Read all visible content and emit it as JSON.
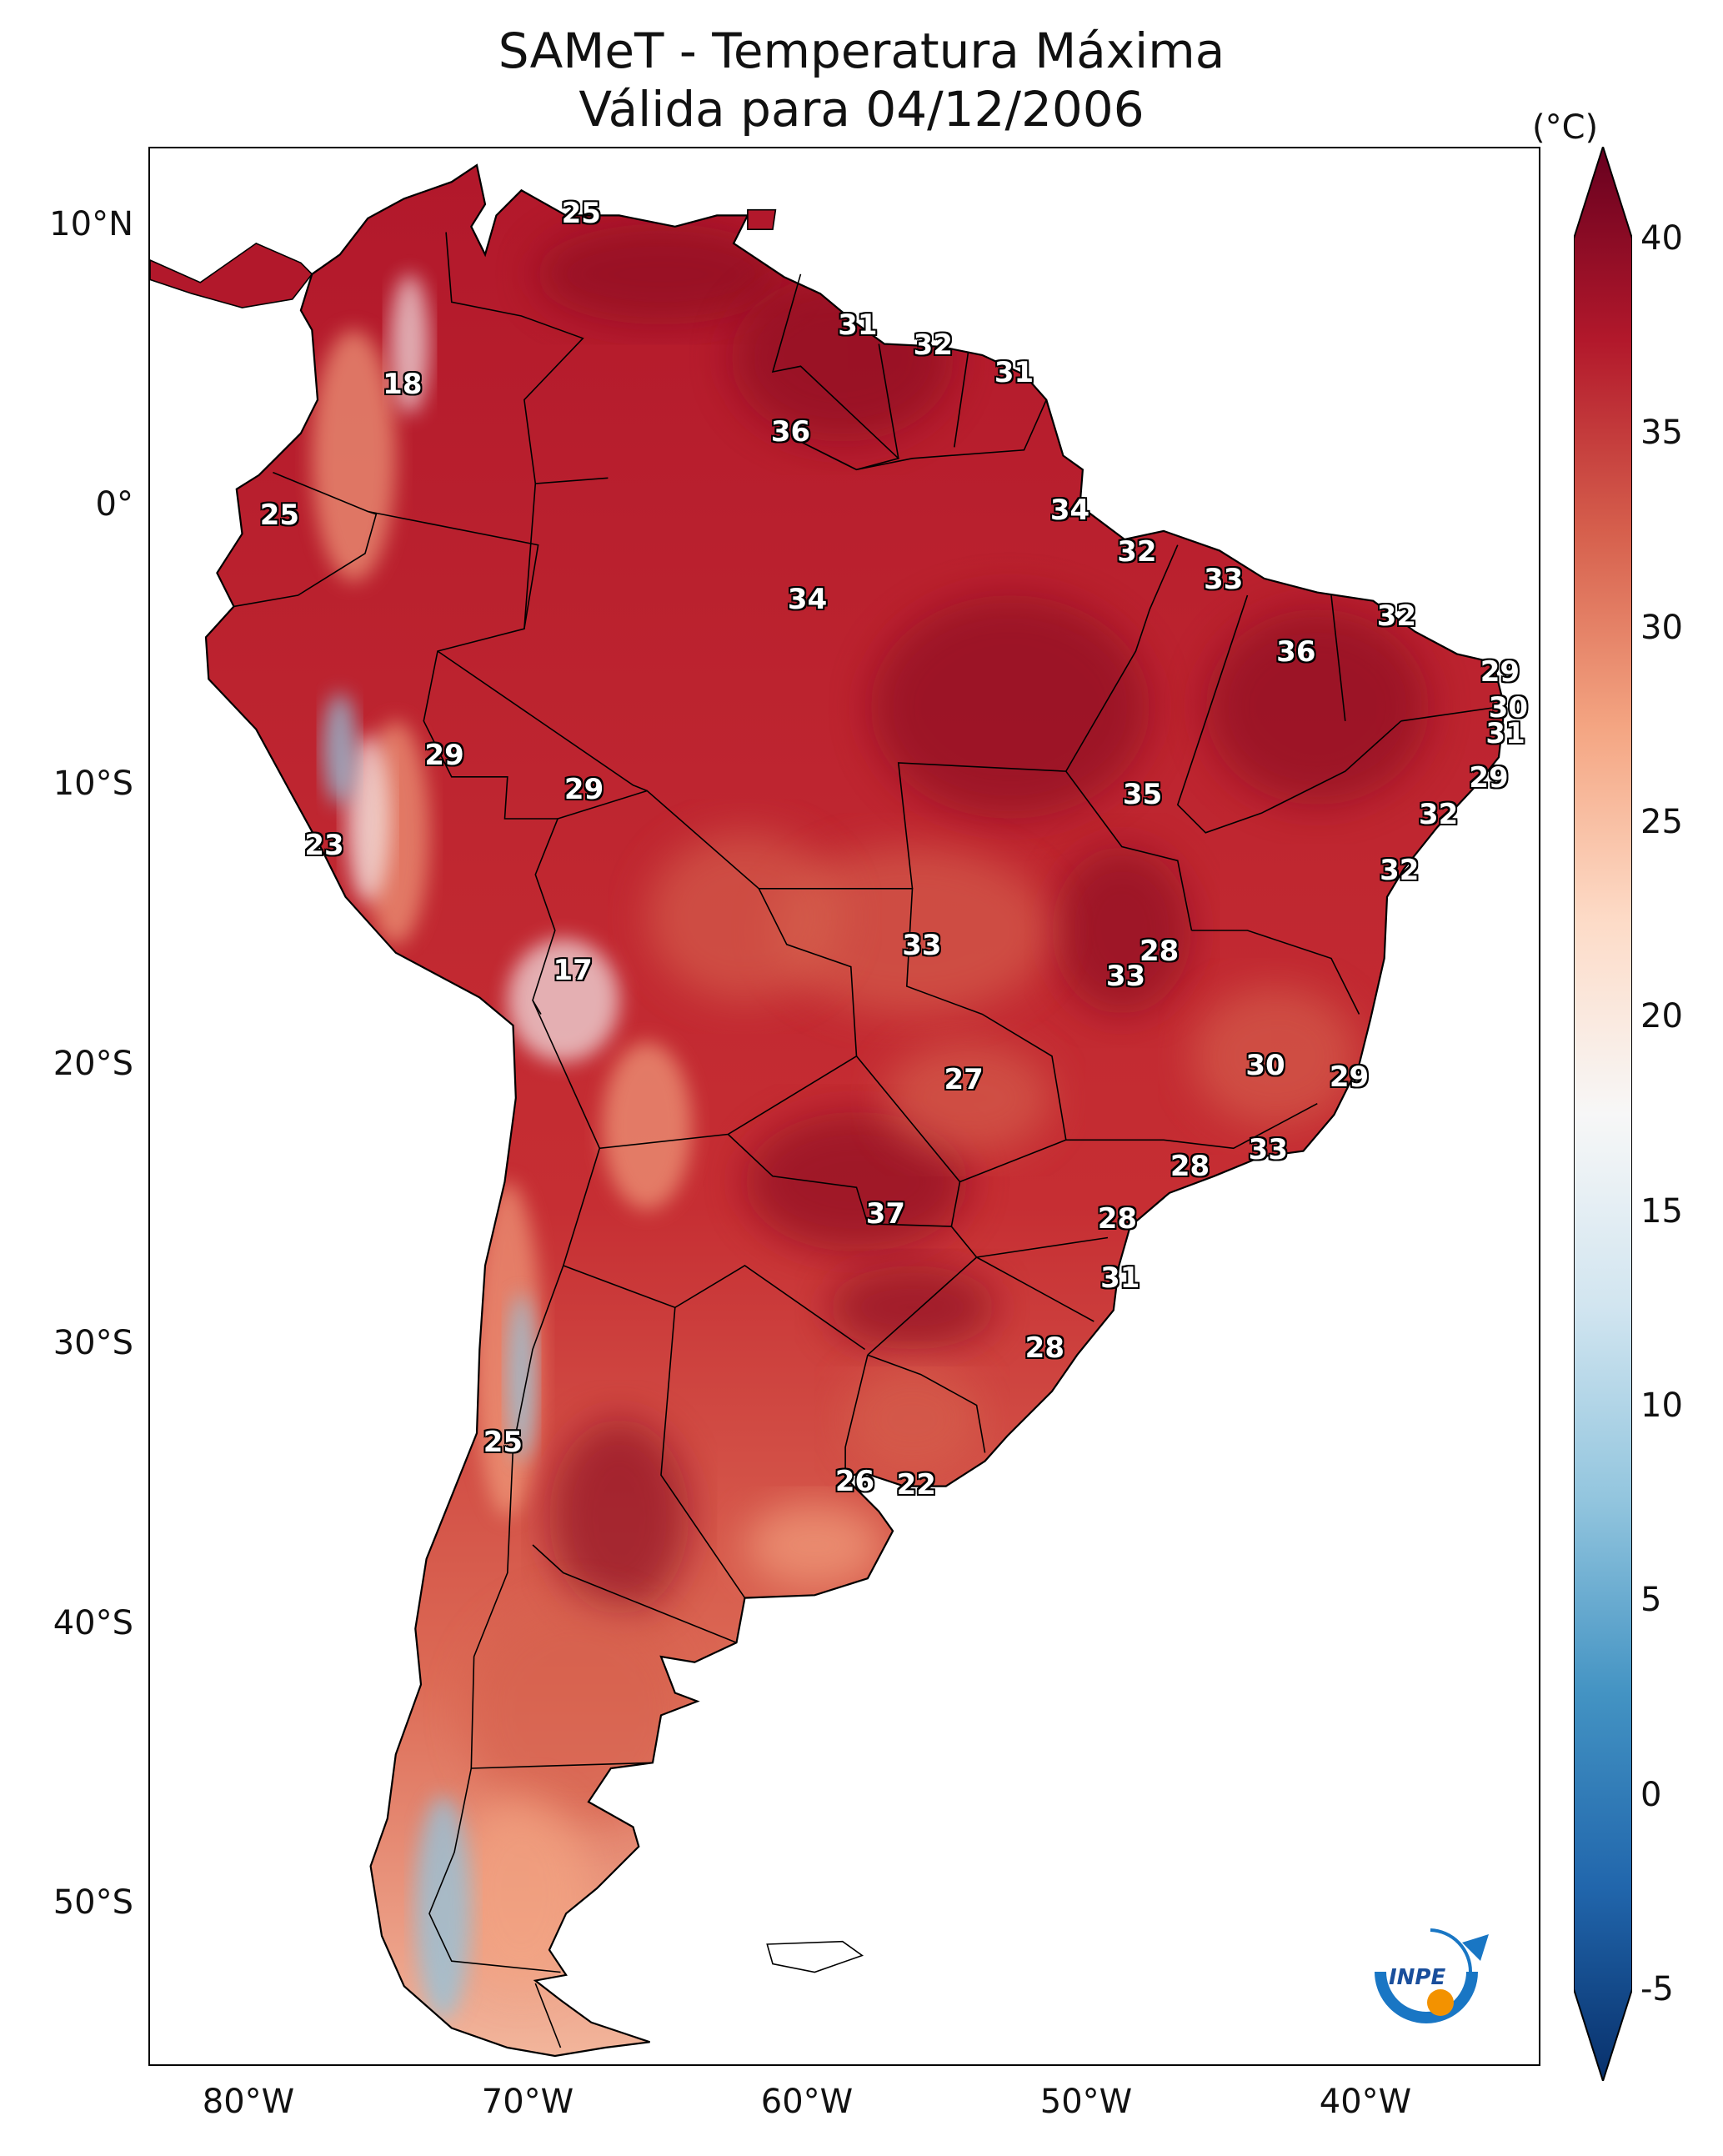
{
  "title": {
    "line1": "SAMeT - Temperatura Máxima",
    "line2": "Válida para 04/12/2006"
  },
  "axes": {
    "lat_labels": [
      "10°N",
      "0°",
      "10°S",
      "20°S",
      "30°S",
      "40°S",
      "50°S"
    ],
    "lon_labels": [
      "80°W",
      "70°W",
      "60°W",
      "50°W",
      "40°W"
    ]
  },
  "colorbar": {
    "unit": "(°C)",
    "ticks": [
      "40",
      "35",
      "30",
      "25",
      "20",
      "15",
      "10",
      "5",
      "0",
      "-5"
    ],
    "range": [
      -5,
      40
    ],
    "colormap": "RdBu_r",
    "colors": [
      "#08306b",
      "#2166ac",
      "#4393c3",
      "#92c5de",
      "#d1e5f0",
      "#f7f7f7",
      "#fddbc7",
      "#f4a582",
      "#d6604d",
      "#b2182b",
      "#67001f"
    ]
  },
  "stations": [
    {
      "value": "25",
      "lon": -67.8,
      "lat": 10.6
    },
    {
      "value": "18",
      "lon": -74.2,
      "lat": 4.5
    },
    {
      "value": "31",
      "lon": -57.9,
      "lat": 6.6
    },
    {
      "value": "32",
      "lon": -55.2,
      "lat": 5.9
    },
    {
      "value": "31",
      "lon": -52.3,
      "lat": 4.9
    },
    {
      "value": "36",
      "lon": -60.3,
      "lat": 2.8
    },
    {
      "value": "25",
      "lon": -78.6,
      "lat": -0.2
    },
    {
      "value": "34",
      "lon": -50.3,
      "lat": 0.0
    },
    {
      "value": "32",
      "lon": -47.9,
      "lat": -1.5
    },
    {
      "value": "33",
      "lon": -44.8,
      "lat": -2.5
    },
    {
      "value": "34",
      "lon": -59.7,
      "lat": -3.2
    },
    {
      "value": "32",
      "lon": -38.6,
      "lat": -3.8
    },
    {
      "value": "36",
      "lon": -42.2,
      "lat": -5.1
    },
    {
      "value": "29",
      "lon": -34.9,
      "lat": -5.8
    },
    {
      "value": "30",
      "lon": -34.6,
      "lat": -7.1
    },
    {
      "value": "31",
      "lon": -34.7,
      "lat": -8.0
    },
    {
      "value": "29",
      "lon": -72.7,
      "lat": -8.8
    },
    {
      "value": "29",
      "lon": -35.3,
      "lat": -9.6
    },
    {
      "value": "29",
      "lon": -67.7,
      "lat": -10.0
    },
    {
      "value": "35",
      "lon": -47.7,
      "lat": -10.2
    },
    {
      "value": "32",
      "lon": -37.1,
      "lat": -10.9
    },
    {
      "value": "23",
      "lon": -77.0,
      "lat": -12.0
    },
    {
      "value": "32",
      "lon": -38.5,
      "lat": -12.9
    },
    {
      "value": "28",
      "lon": -47.1,
      "lat": -15.8
    },
    {
      "value": "33",
      "lon": -55.6,
      "lat": -15.6
    },
    {
      "value": "33",
      "lon": -48.3,
      "lat": -16.7
    },
    {
      "value": "17",
      "lon": -68.1,
      "lat": -16.5
    },
    {
      "value": "30",
      "lon": -43.3,
      "lat": -19.9
    },
    {
      "value": "27",
      "lon": -54.1,
      "lat": -20.4
    },
    {
      "value": "29",
      "lon": -40.3,
      "lat": -20.3
    },
    {
      "value": "33",
      "lon": -43.2,
      "lat": -22.9
    },
    {
      "value": "28",
      "lon": -46.0,
      "lat": -23.5
    },
    {
      "value": "37",
      "lon": -56.9,
      "lat": -25.2
    },
    {
      "value": "28",
      "lon": -48.6,
      "lat": -25.4
    },
    {
      "value": "31",
      "lon": -48.5,
      "lat": -27.5
    },
    {
      "value": "28",
      "lon": -51.2,
      "lat": -30.0
    },
    {
      "value": "25",
      "lon": -70.6,
      "lat": -33.4
    },
    {
      "value": "26",
      "lon": -58.0,
      "lat": -34.8
    },
    {
      "value": "22",
      "lon": -55.8,
      "lat": -34.9
    }
  ],
  "logo": {
    "text": "INPE",
    "colors": {
      "ring": "#1976c4",
      "dot": "#f39200",
      "text": "#1a4f9c"
    }
  },
  "map_colors": {
    "hot": "#b2182b",
    "very_hot": "#8c0a24",
    "warm": "#d6604d",
    "mild": "#f4a582",
    "neutral": "#f7f7f7",
    "cool": "#92c5de",
    "cold": "#4393c3",
    "border": "#000000"
  }
}
